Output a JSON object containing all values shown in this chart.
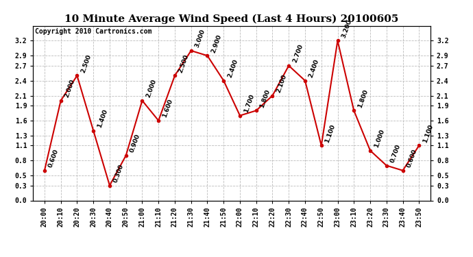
{
  "title": "10 Minute Average Wind Speed (Last 4 Hours) 20100605",
  "copyright": "Copyright 2010 Cartronics.com",
  "x_labels": [
    "20:00",
    "20:10",
    "20:20",
    "20:30",
    "20:40",
    "20:50",
    "21:00",
    "21:10",
    "21:20",
    "21:30",
    "21:40",
    "21:50",
    "22:00",
    "22:10",
    "22:20",
    "22:30",
    "22:40",
    "22:50",
    "23:00",
    "23:10",
    "23:20",
    "23:30",
    "23:40",
    "23:50"
  ],
  "y_values": [
    0.6,
    2.0,
    2.5,
    1.4,
    0.3,
    0.9,
    2.0,
    1.6,
    2.5,
    3.0,
    2.9,
    2.4,
    1.7,
    1.8,
    2.1,
    2.7,
    2.4,
    1.1,
    3.2,
    1.8,
    1.0,
    0.7,
    0.6,
    1.1
  ],
  "line_color": "#cc0000",
  "marker_color": "#cc0000",
  "marker_size": 3,
  "line_width": 1.5,
  "ylim": [
    0.0,
    3.5
  ],
  "yticks": [
    0.0,
    0.3,
    0.5,
    0.8,
    1.1,
    1.3,
    1.6,
    1.9,
    2.1,
    2.4,
    2.7,
    2.9,
    3.2
  ],
  "grid_color": "#bbbbbb",
  "bg_color": "#ffffff",
  "title_fontsize": 11,
  "copyright_fontsize": 7,
  "tick_fontsize": 7,
  "annotation_fontsize": 6.5
}
